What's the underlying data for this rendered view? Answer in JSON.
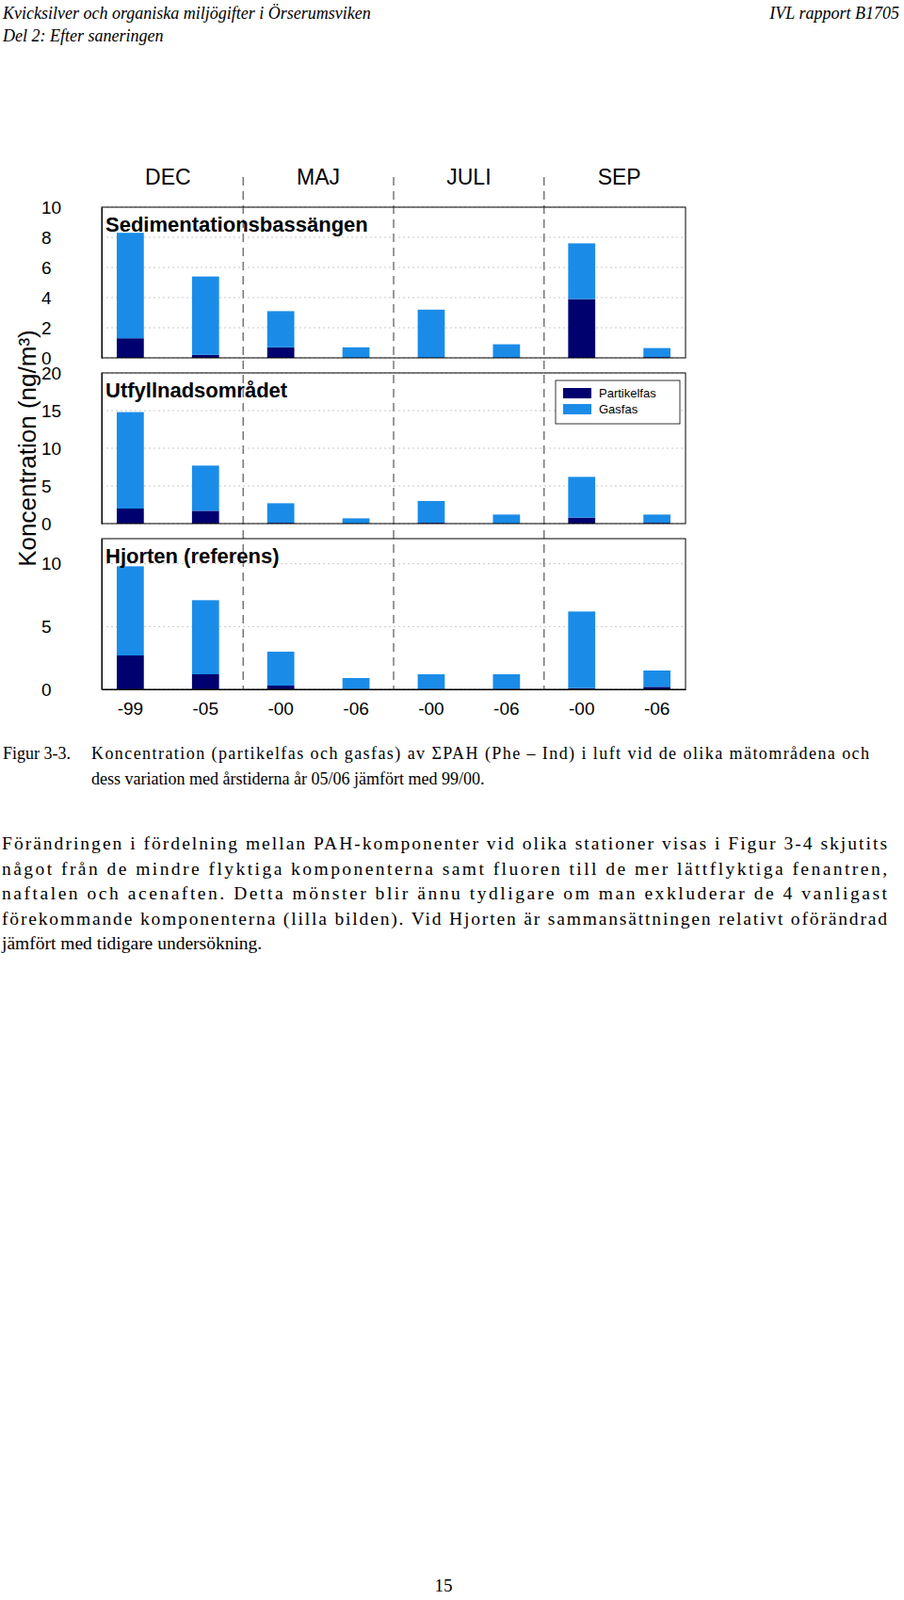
{
  "header": {
    "title": "Kvicksilver och organiska miljögifter i Örserumsviken",
    "subtitle": "Del 2: Efter saneringen",
    "report": "IVL rapport B1705"
  },
  "figure": {
    "y_label": "Koncentration (ng/m³)",
    "season_labels": [
      "DEC",
      "MAJ",
      "JULI",
      "SEP"
    ]
  },
  "chart_data": [
    {
      "type": "bar",
      "stacked": true,
      "grid": true,
      "title": "Sedimentationsbassängen",
      "categories": [
        "-99",
        "-05",
        "-00",
        "-06",
        "-00",
        "-06",
        "-00",
        "-06"
      ],
      "series": [
        {
          "name": "Partikelfas",
          "color": "#00006e",
          "values": [
            1.3,
            0.2,
            0.7,
            0.0,
            0.0,
            0.0,
            3.9,
            0.05
          ]
        },
        {
          "name": "Gasfas",
          "color": "#1a8ce8",
          "values": [
            7.0,
            5.2,
            2.4,
            0.7,
            3.2,
            0.9,
            3.7,
            0.6
          ]
        }
      ],
      "ylim": [
        0,
        10
      ],
      "yticks": [
        0,
        2,
        4,
        6,
        8,
        10
      ],
      "tick_labels": "y"
    },
    {
      "type": "bar",
      "stacked": true,
      "grid": true,
      "legend": "upper right",
      "title": "Utfyllnadsområdet",
      "categories": [
        "-99",
        "-05",
        "-00",
        "-06",
        "-00",
        "-06",
        "-00",
        "-06"
      ],
      "series": [
        {
          "name": "Partikelfas",
          "color": "#00006e",
          "values": [
            2.0,
            1.7,
            0.1,
            0.0,
            0.1,
            0.0,
            0.8,
            0.1
          ]
        },
        {
          "name": "Gasfas",
          "color": "#1a8ce8",
          "values": [
            12.8,
            6.0,
            2.6,
            0.7,
            2.9,
            1.2,
            5.4,
            1.1
          ]
        }
      ],
      "ylim": [
        0,
        20
      ],
      "yticks": [
        0,
        5,
        10,
        15,
        20
      ],
      "tick_labels": "y"
    },
    {
      "type": "bar",
      "stacked": true,
      "grid": true,
      "title": "Hjorten (referens)",
      "categories": [
        "-99",
        "-05",
        "-00",
        "-06",
        "-00",
        "-06",
        "-00",
        "-06"
      ],
      "series": [
        {
          "name": "Partikelfas",
          "color": "#00006e",
          "values": [
            2.7,
            1.2,
            0.3,
            0.0,
            0.0,
            0.0,
            0.1,
            0.2
          ]
        },
        {
          "name": "Gasfas",
          "color": "#1a8ce8",
          "values": [
            7.1,
            5.9,
            2.7,
            0.9,
            1.2,
            1.2,
            6.1,
            1.3
          ]
        }
      ],
      "ylim": [
        0,
        12
      ],
      "yticks": [
        0,
        5,
        10
      ]
    }
  ],
  "caption": {
    "label": "Figur 3-3.",
    "lines": [
      "Koncentration (partikelfas och gasfas) av ΣPAH (Phe – Ind) i luft vid de olika mätområdena och",
      "dess variation med årstiderna år 05/06 jämfört med 99/00."
    ]
  },
  "paragraph": {
    "lines": [
      "Förändringen i fördelning mellan PAH-komponenter vid olika stationer visas i Figur 3-4 skjutits",
      "något från de mindre flyktiga komponenterna samt fluoren till de mer lättflyktiga fenantren,",
      "naftalen och acenaften. Detta mönster blir ännu tydligare om man exkluderar de 4 vanligast",
      "förekommande komponenterna (lilla bilden). Vid Hjorten är sammansättningen relativt oförändrad",
      "jämfört med tidigare undersökning."
    ]
  },
  "page_number": "15"
}
